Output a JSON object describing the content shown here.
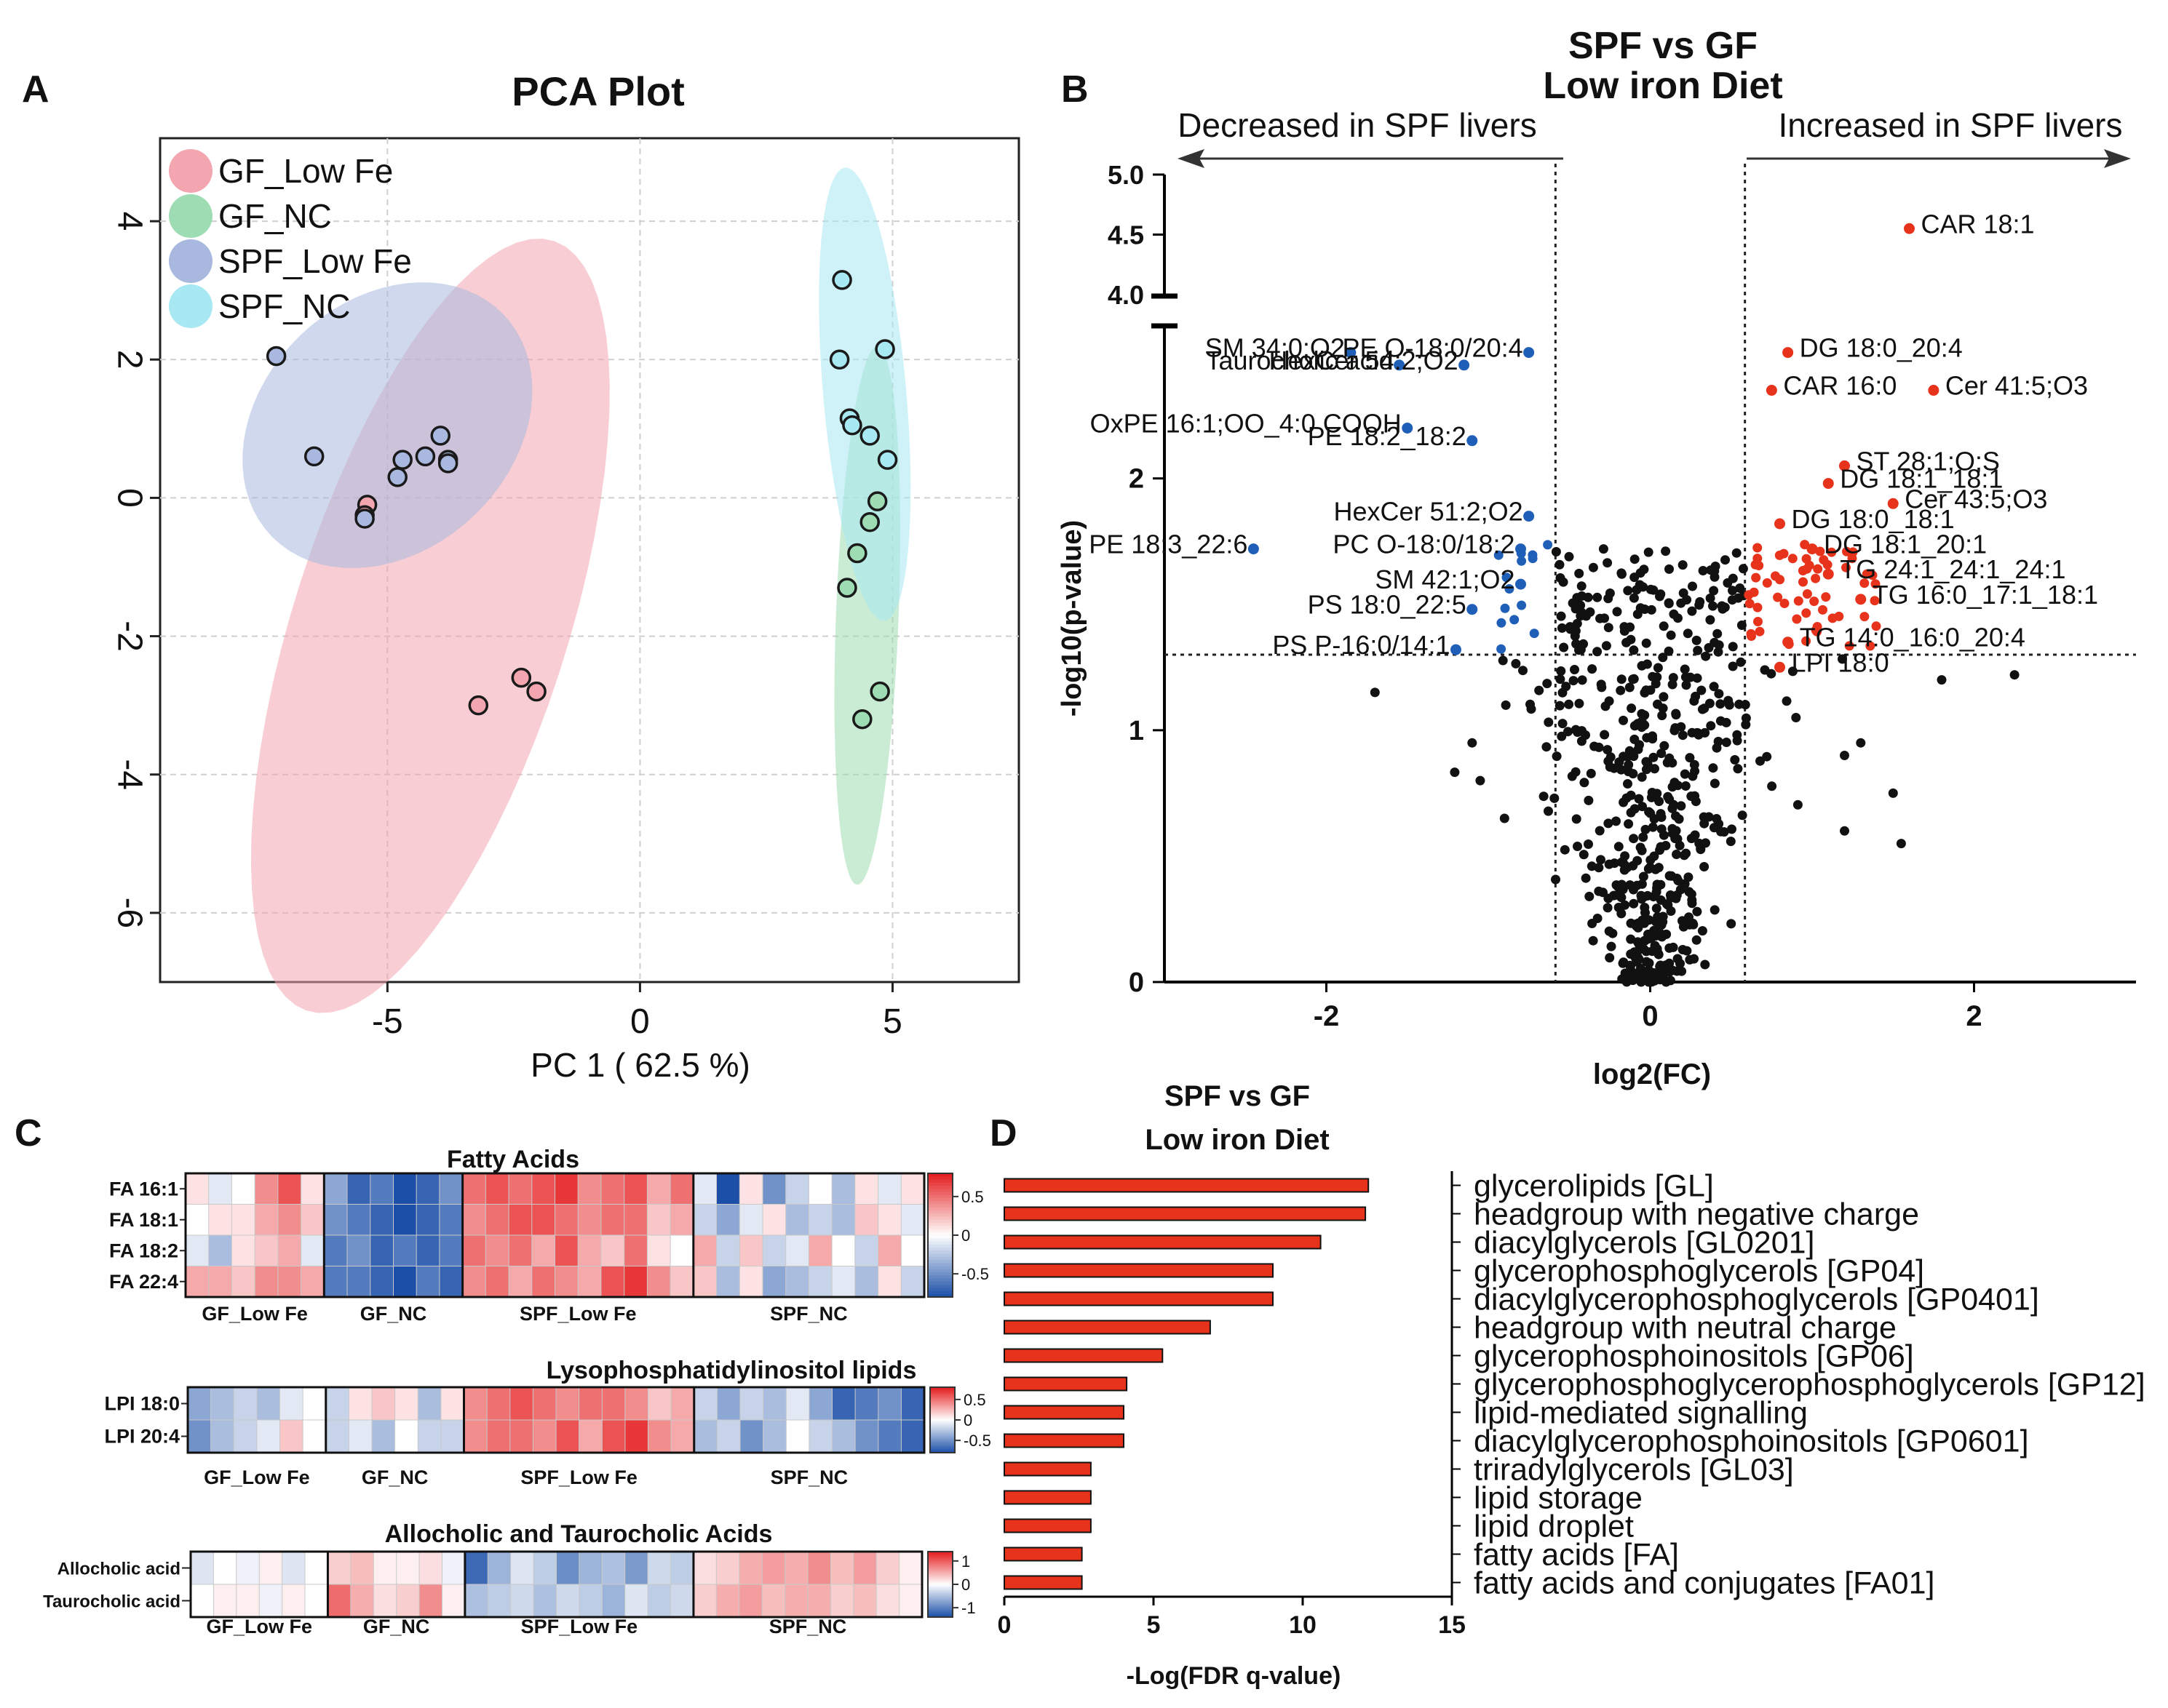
{
  "panel_letters": [
    "A",
    "B",
    "C",
    "D"
  ],
  "chart_data": [
    {
      "type": "scatter",
      "panel": "A",
      "title": "PCA Plot",
      "xlabel": "PC 1 ( 62.5 %)",
      "ylabel": "",
      "xlim": [
        -9.5,
        7.5
      ],
      "ylim": [
        -7.0,
        5.2
      ],
      "xticks": [
        -5,
        0,
        5
      ],
      "xtick_labels": [
        "-5",
        "0",
        "5"
      ],
      "yticks": [
        4,
        2,
        0,
        -2,
        -4,
        -6
      ],
      "ytick_labels": [
        "4",
        "2",
        "0",
        "-2",
        "-4",
        "-6"
      ],
      "grid": true,
      "legend_position": "top-left",
      "series": [
        {
          "name": "GF_Low Fe",
          "color": "#F3A6B0",
          "points": [
            [
              -5.4,
              -0.1
            ],
            [
              -5.45,
              -0.25
            ],
            [
              -3.2,
              -3.0
            ],
            [
              -2.35,
              -2.6
            ],
            [
              -2.05,
              -2.8
            ]
          ],
          "ellipse": {
            "center": [
              -4.15,
              -1.85
            ],
            "semi_axes": [
              2.6,
              6.1
            ],
            "angle": 26
          }
        },
        {
          "name": "GF_NC",
          "color": "#9EDCB3",
          "points": [
            [
              4.1,
              -1.3
            ],
            [
              4.3,
              -0.8
            ],
            [
              4.55,
              -0.35
            ],
            [
              4.7,
              -0.05
            ],
            [
              4.75,
              -2.8
            ],
            [
              4.4,
              -3.2
            ]
          ],
          "ellipse": {
            "center": [
              4.5,
              -1.7
            ],
            "semi_axes": [
              0.62,
              3.9
            ],
            "angle": 3
          }
        },
        {
          "name": "SPF_Low Fe",
          "color": "#A8B8DF",
          "points": [
            [
              -7.2,
              2.05
            ],
            [
              -6.45,
              0.6
            ],
            [
              -5.45,
              -0.3
            ],
            [
              -4.8,
              0.3
            ],
            [
              -4.7,
              0.55
            ],
            [
              -4.25,
              0.6
            ],
            [
              -3.95,
              0.9
            ],
            [
              -3.8,
              0.55
            ],
            [
              -3.8,
              0.5
            ]
          ],
          "ellipse": {
            "center": [
              -5.0,
              1.05
            ],
            "semi_axes": [
              2.95,
              1.95
            ],
            "angle": -18
          }
        },
        {
          "name": "SPF_NC",
          "color": "#A7E8F2",
          "points": [
            [
              4.0,
              3.15
            ],
            [
              3.95,
              2.0
            ],
            [
              4.85,
              2.15
            ],
            [
              4.15,
              1.15
            ],
            [
              4.2,
              1.05
            ],
            [
              4.55,
              0.9
            ],
            [
              4.9,
              0.55
            ]
          ],
          "ellipse": {
            "center": [
              4.45,
              1.5
            ],
            "semi_axes": [
              0.82,
              3.3
            ],
            "angle": -7
          }
        }
      ]
    },
    {
      "type": "scatter",
      "panel": "B",
      "title": "SPF vs GF",
      "subtitle": "Low iron Diet",
      "xlabel": "log2(FC)",
      "ylabel": "-log10(p-value)",
      "xlim": [
        -3.0,
        3.0
      ],
      "ylim": [
        0,
        5.0
      ],
      "axis_break": [
        2.6,
        4.0
      ],
      "xticks": [
        -2,
        0,
        2
      ],
      "xtick_labels": [
        "-2",
        "0",
        "2"
      ],
      "yticks_lower": [
        0,
        1,
        2
      ],
      "ytick_labels_lower": [
        "0",
        "1",
        "2"
      ],
      "yticks_upper": [
        4.0,
        4.5,
        5.0
      ],
      "ytick_labels_upper": [
        "4.0",
        "4.5",
        "5.0"
      ],
      "thresholds": {
        "fc": [
          -0.585,
          0.585
        ],
        "p": 1.3
      },
      "arrow_left_label": "Decreased in SPF livers",
      "arrow_right_label": "Increased in SPF livers",
      "colors": {
        "down": "#1F5FB8",
        "up": "#E8331C",
        "ns": "#111111"
      },
      "annotations": [
        {
          "label": "CAR 18:1",
          "x": 1.6,
          "y": 4.55
        },
        {
          "label": "SM 34:0;O2",
          "x": -1.85,
          "y": 2.5
        },
        {
          "label": "PE O-18:0/20:4",
          "x": -0.75,
          "y": 2.5
        },
        {
          "label": "Taurocholic acid",
          "x": -1.55,
          "y": 2.45
        },
        {
          "label": "HexCer 54:2;O2",
          "x": -1.15,
          "y": 2.45
        },
        {
          "label": "DG 18:0_20:4",
          "x": 0.85,
          "y": 2.5
        },
        {
          "label": "CAR 16:0",
          "x": 0.75,
          "y": 2.35
        },
        {
          "label": "Cer 41:5;O3",
          "x": 1.75,
          "y": 2.35
        },
        {
          "label": "OxPE 16:1;OO_4:0 COOH",
          "x": -1.5,
          "y": 2.2
        },
        {
          "label": "PE 18:2_18:2",
          "x": -1.1,
          "y": 2.15
        },
        {
          "label": "ST 28:1;O;S",
          "x": 1.2,
          "y": 2.05
        },
        {
          "label": "DG 18:1_18:1",
          "x": 1.1,
          "y": 1.98
        },
        {
          "label": "Cer 43:5;O3",
          "x": 1.5,
          "y": 1.9
        },
        {
          "label": "HexCer 51:2;O2",
          "x": -0.75,
          "y": 1.85
        },
        {
          "label": "DG 18:0_18:1",
          "x": 0.8,
          "y": 1.82
        },
        {
          "label": "PE 18:3_22:6",
          "x": -2.45,
          "y": 1.72
        },
        {
          "label": "PC O-18:0/18:2",
          "x": -0.8,
          "y": 1.72
        },
        {
          "label": "DG 18:1_20:1",
          "x": 1.0,
          "y": 1.72
        },
        {
          "label": "TG 24:1_24:1_24:1",
          "x": 1.1,
          "y": 1.62
        },
        {
          "label": "SM 42:1;O2",
          "x": -0.8,
          "y": 1.58
        },
        {
          "label": "TG 16:0_17:1_18:1",
          "x": 1.3,
          "y": 1.52
        },
        {
          "label": "PS 18:0_22:5",
          "x": -1.1,
          "y": 1.48
        },
        {
          "label": "TG 14:0_16:0_20:4",
          "x": 0.85,
          "y": 1.35
        },
        {
          "label": "PS P-16:0/14:1",
          "x": -1.2,
          "y": 1.32
        },
        {
          "label": "LPI 18:0",
          "x": 0.8,
          "y": 1.25
        }
      ]
    },
    {
      "type": "heatmap",
      "panel": "C",
      "scale_color_low": "#1B4FA8",
      "scale_color_mid": "#FFFFFF",
      "scale_color_high": "#E41A1C",
      "blocks": [
        {
          "title": "Fatty Acids",
          "rows": [
            "FA 16:1",
            "FA 18:1",
            "FA 18:2",
            "FA 22:4"
          ],
          "groups": [
            {
              "name": "GF_Low Fe",
              "n": 6
            },
            {
              "name": "GF_NC",
              "n": 6
            },
            {
              "name": "SPF_Low Fe",
              "n": 10
            },
            {
              "name": "SPF_NC",
              "n": 10
            }
          ],
          "scale_ticks": [
            0.5,
            0,
            -0.5
          ],
          "scale_labels": [
            "0.5",
            "0",
            "-0.5"
          ],
          "scale_max": 0.8,
          "values": [
            [
              0.1,
              -0.1,
              0.0,
              0.4,
              0.6,
              0.1,
              -0.4,
              -0.7,
              -0.6,
              -0.8,
              -0.7,
              -0.5,
              0.5,
              0.6,
              0.5,
              0.6,
              0.7,
              0.4,
              0.5,
              0.6,
              0.3,
              0.5,
              -0.1,
              -0.8,
              0.1,
              -0.5,
              -0.2,
              0.0,
              -0.3,
              0.1,
              -0.1,
              0.1
            ],
            [
              0.0,
              0.1,
              0.1,
              0.3,
              0.4,
              0.2,
              -0.5,
              -0.6,
              -0.7,
              -0.8,
              -0.7,
              -0.6,
              0.4,
              0.5,
              0.6,
              0.6,
              0.5,
              0.4,
              0.5,
              0.5,
              0.2,
              0.3,
              -0.2,
              -0.4,
              -0.1,
              0.1,
              -0.3,
              -0.2,
              -0.3,
              0.2,
              0.1,
              -0.1
            ],
            [
              -0.1,
              -0.3,
              0.1,
              0.2,
              0.3,
              -0.1,
              -0.6,
              -0.5,
              -0.7,
              -0.6,
              -0.7,
              -0.6,
              0.5,
              0.4,
              0.5,
              0.3,
              0.6,
              0.3,
              0.2,
              0.5,
              0.1,
              0.0,
              0.3,
              -0.2,
              0.2,
              -0.2,
              -0.1,
              0.3,
              0.0,
              -0.2,
              0.3,
              0.0
            ],
            [
              0.3,
              0.3,
              0.2,
              0.4,
              0.4,
              0.3,
              -0.6,
              -0.6,
              -0.7,
              -0.8,
              -0.6,
              -0.7,
              0.4,
              0.5,
              0.3,
              0.5,
              0.4,
              0.3,
              0.6,
              0.7,
              0.4,
              0.2,
              0.2,
              -0.3,
              0.1,
              -0.4,
              -0.3,
              -0.2,
              -0.1,
              -0.3,
              0.1,
              -0.2
            ]
          ]
        },
        {
          "title": "Lysophosphatidylinositol lipids",
          "rows": [
            "LPI 18:0",
            "LPI 20:4"
          ],
          "groups": [
            {
              "name": "GF_Low Fe",
              "n": 6
            },
            {
              "name": "GF_NC",
              "n": 6
            },
            {
              "name": "SPF_Low Fe",
              "n": 10
            },
            {
              "name": "SPF_NC",
              "n": 10
            }
          ],
          "scale_ticks": [
            0.5,
            0,
            -0.5
          ],
          "scale_labels": [
            "0.5",
            "0",
            "-0.5"
          ],
          "scale_max": 0.8,
          "values": [
            [
              -0.4,
              -0.3,
              -0.2,
              -0.3,
              -0.1,
              0.0,
              -0.2,
              0.1,
              0.2,
              0.1,
              -0.3,
              0.1,
              0.4,
              0.5,
              0.6,
              0.5,
              0.4,
              0.5,
              0.5,
              0.4,
              0.2,
              0.3,
              -0.2,
              -0.4,
              -0.2,
              -0.3,
              -0.1,
              -0.4,
              -0.7,
              -0.6,
              -0.5,
              -0.7
            ],
            [
              -0.5,
              -0.3,
              -0.2,
              -0.1,
              0.2,
              0.0,
              -0.2,
              -0.1,
              -0.3,
              0.0,
              -0.2,
              -0.2,
              0.4,
              0.5,
              0.5,
              0.4,
              0.6,
              0.3,
              0.6,
              0.7,
              0.4,
              0.3,
              -0.3,
              -0.2,
              -0.5,
              -0.3,
              0.0,
              -0.2,
              -0.3,
              -0.5,
              -0.6,
              -0.7
            ]
          ]
        },
        {
          "title": "Allocholic and Taurocholic Acids",
          "rows": [
            "Allocholic acid",
            "Taurocholic acid"
          ],
          "groups": [
            {
              "name": "GF_Low Fe",
              "n": 6
            },
            {
              "name": "GF_NC",
              "n": 6
            },
            {
              "name": "SPF_Low Fe",
              "n": 10
            },
            {
              "name": "SPF_NC",
              "n": 10
            }
          ],
          "scale_ticks": [
            1,
            0,
            -1
          ],
          "scale_labels": [
            "1",
            "0",
            "-1"
          ],
          "scale_max": 1.4,
          "values": [
            [
              -0.2,
              0.0,
              -0.1,
              0.1,
              -0.2,
              0.0,
              0.3,
              0.4,
              0.1,
              0.1,
              0.2,
              -0.1,
              -1.2,
              -0.6,
              -0.2,
              -0.4,
              -0.9,
              -0.6,
              -0.5,
              -0.8,
              -0.3,
              -0.4,
              0.2,
              0.3,
              0.5,
              0.6,
              0.5,
              0.7,
              0.4,
              0.6,
              0.3,
              0.1
            ],
            [
              0.0,
              0.1,
              0.1,
              -0.1,
              0.1,
              0.0,
              0.9,
              0.5,
              0.2,
              0.3,
              0.7,
              0.1,
              -0.5,
              -0.4,
              -0.3,
              -0.5,
              -0.3,
              -0.4,
              -0.6,
              -0.2,
              -0.4,
              -0.3,
              0.3,
              0.5,
              0.6,
              0.4,
              0.5,
              0.5,
              0.3,
              0.4,
              0.2,
              0.1
            ]
          ]
        }
      ]
    },
    {
      "type": "bar",
      "panel": "D",
      "title": "SPF vs GF",
      "subtitle": "Low iron Diet",
      "orientation": "horizontal",
      "xlabel": "-Log(FDR q-value)",
      "xlim": [
        0,
        15
      ],
      "xticks": [
        0,
        5,
        10,
        15
      ],
      "xtick_labels": [
        "0",
        "5",
        "10",
        "15"
      ],
      "bar_color": "#E8331C",
      "categories": [
        "glycerolipids [GL]",
        "headgroup with negative charge",
        "diacylglycerols [GL0201]",
        "glycerophosphoglycerols [GP04]",
        "diacylglycerophosphoglycerols [GP0401]",
        "headgroup with neutral charge",
        "glycerophosphoinositols [GP06]",
        "glycerophosphoglycerophosphoglycerols [GP12]",
        "lipid-mediated signalling",
        "diacylglycerophosphoinositols [GP0601]",
        "triradylglycerols [GL03]",
        "lipid storage",
        "lipid droplet",
        "fatty acids [FA]",
        "fatty acids and conjugates [FA01]"
      ],
      "values": [
        12.2,
        12.1,
        10.6,
        9.0,
        9.0,
        6.9,
        5.3,
        4.1,
        4.0,
        4.0,
        2.9,
        2.9,
        2.9,
        2.6,
        2.6
      ]
    }
  ]
}
